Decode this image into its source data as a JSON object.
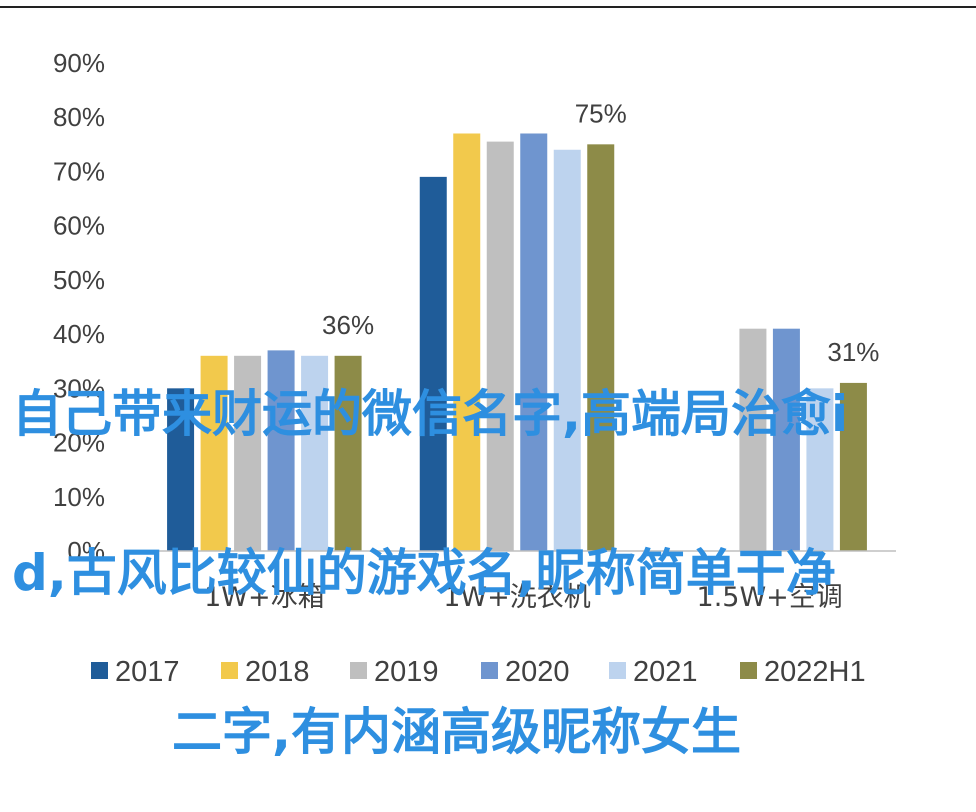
{
  "chart_data": {
    "type": "bar",
    "categories": [
      "1W+冰箱",
      "1W+洗衣机",
      "1.5W+空调"
    ],
    "series": [
      {
        "name": "2017",
        "values": [
          0.3,
          0.69,
          null
        ],
        "color": "#1f5c99"
      },
      {
        "name": "2018",
        "values": [
          0.36,
          0.77,
          null
        ],
        "color": "#f2c94c"
      },
      {
        "name": "2019",
        "values": [
          0.36,
          0.755,
          0.41
        ],
        "color": "#bfbfbf"
      },
      {
        "name": "2020",
        "values": [
          0.37,
          0.77,
          0.41
        ],
        "color": "#6f95cf"
      },
      {
        "name": "2021",
        "values": [
          0.36,
          0.74,
          0.3
        ],
        "color": "#bdd3ee"
      },
      {
        "name": "2022H1",
        "values": [
          0.36,
          0.75,
          0.31
        ],
        "color": "#8d8b48"
      }
    ],
    "data_labels": [
      {
        "series": "2022H1",
        "category": "1W+冰箱",
        "text": "36%"
      },
      {
        "series": "2022H1",
        "category": "1W+洗衣机",
        "text": "75%"
      },
      {
        "series": "2022H1",
        "category": "1.5W+空调",
        "text": "31%"
      }
    ],
    "y_ticks": [
      "0%",
      "10%",
      "20%",
      "30%",
      "40%",
      "50%",
      "60%",
      "70%",
      "80%",
      "90%"
    ],
    "ylim": [
      0,
      0.9
    ],
    "legend_position": "bottom",
    "grid": false
  },
  "overlay": {
    "line1": "自己带来财运的微信名字,高端局治愈i",
    "line2": "d,古风比较仙的游戏名,昵称简单干净",
    "line3": "二字,有内涵高级昵称女生"
  }
}
